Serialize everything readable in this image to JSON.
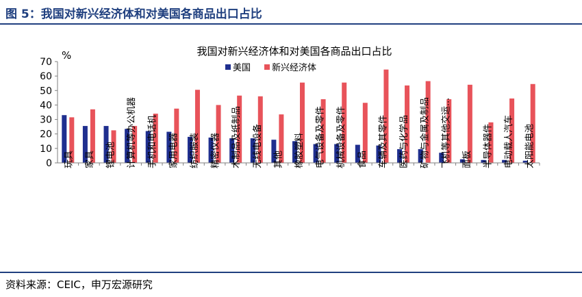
{
  "figure": {
    "title": "图 5：我国对新兴经济体和对美国各商品出口占比",
    "source": "资料来源：CEIC，申万宏源研究"
  },
  "colors": {
    "us": "#1f2f8f",
    "emerging": "#e8535a",
    "accent": "#1f3f7f"
  },
  "chart_data": {
    "type": "bar",
    "title": "我国对新兴经济体和对美国各商品出口占比",
    "ylabel": "%",
    "xlabel": "",
    "ylim": [
      0,
      70
    ],
    "yticks": [
      0,
      10,
      20,
      30,
      40,
      50,
      60,
      70
    ],
    "grid": false,
    "legend_position": "top-center",
    "categories": [
      "玩具",
      "家具",
      "锂电池",
      "计算机等办公机器",
      "手机和电话机",
      "家用电器",
      "纺织服装",
      "精密仪器",
      "木制品及纸制品",
      "无线电设备",
      "其他",
      "橡胶塑料",
      "电气设备及零件",
      "机械设备及零件",
      "食品",
      "车辆及其零件",
      "医药与化学品",
      "矿物与金属及制品",
      "飞机等其他交运...",
      "面板",
      "半导体器件",
      "电动载人汽车",
      "太阳能电池"
    ],
    "series": [
      {
        "name": "美国",
        "values": [
          33,
          25.5,
          25.5,
          23.5,
          22,
          21.5,
          18,
          17.5,
          17,
          17,
          16,
          15,
          13,
          13,
          12.5,
          12,
          9.5,
          9.5,
          7,
          2.5,
          2,
          2,
          1.5
        ]
      },
      {
        "name": "新兴经济体",
        "values": [
          31.5,
          37,
          22.5,
          25.5,
          34,
          37.5,
          50.5,
          40,
          46.5,
          46,
          33.5,
          55.5,
          44,
          55.5,
          41.5,
          64.5,
          53.5,
          56.5,
          44,
          54,
          28,
          44.5,
          54.5
        ]
      }
    ]
  }
}
